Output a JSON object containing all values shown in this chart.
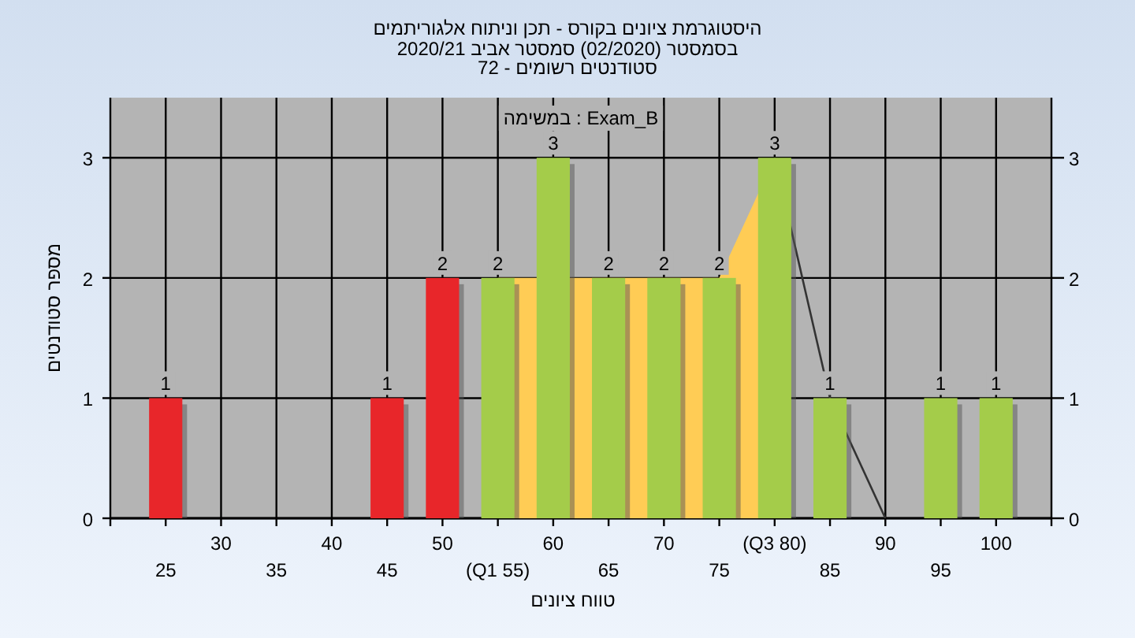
{
  "chart_data": {
    "type": "bar",
    "title": "היסטוגרמת ציונים בקורס - תכן וניתוח אלגוריתמים",
    "subtitle": "בסמסטר  (02/2020)  סמסטר אביב 2020/21\nסטודנטים רשומים - 72",
    "xlabel": "טווח ציונים",
    "ylabel": "מספר סטודנטים",
    "annotations": [
      "Exam_B : במשימה"
    ],
    "categories": [
      "25",
      "30",
      "35",
      "40",
      "45",
      "50",
      "(Q1 55)",
      "60",
      "65",
      "70",
      "75",
      "(Q3 80)",
      "85",
      "90",
      "95",
      "100"
    ],
    "series": [
      {
        "type": "area",
        "color": "#ffcc55",
        "values": [
          null,
          null,
          null,
          null,
          null,
          null,
          2,
          null,
          2,
          2,
          2,
          3,
          null,
          null,
          null,
          null
        ]
      },
      {
        "type": "line",
        "color": "#333333",
        "values": [
          null,
          null,
          null,
          null,
          null,
          null,
          null,
          null,
          null,
          null,
          null,
          3,
          1,
          0,
          null,
          null
        ]
      },
      {
        "colors": [
          "#e8262a",
          "#e8262a",
          "#e8262a",
          "#e8262a",
          "#e8262a",
          "#e8262a",
          "#a4cc4a",
          "#a4cc4a",
          "#a4cc4a",
          "#a4cc4a",
          "#a4cc4a",
          "#a4cc4a",
          "#a4cc4a",
          "#a4cc4a",
          "#a4cc4a",
          "#a4cc4a"
        ],
        "values": [
          1,
          0,
          0,
          0,
          1,
          2,
          2,
          3,
          2,
          2,
          2,
          3,
          1,
          0,
          1,
          1
        ],
        "value_labels": [
          "1",
          null,
          null,
          null,
          "1",
          "2",
          "2",
          "3",
          "2",
          "2",
          "2",
          "3",
          "1",
          null,
          "1",
          "1"
        ]
      }
    ],
    "ylim": [
      0,
      3.5
    ],
    "yticks": [
      0,
      1,
      2,
      3
    ],
    "y2lim": [
      0,
      3.5
    ],
    "y2ticks": [
      0,
      1,
      2,
      3
    ],
    "grid": true
  }
}
